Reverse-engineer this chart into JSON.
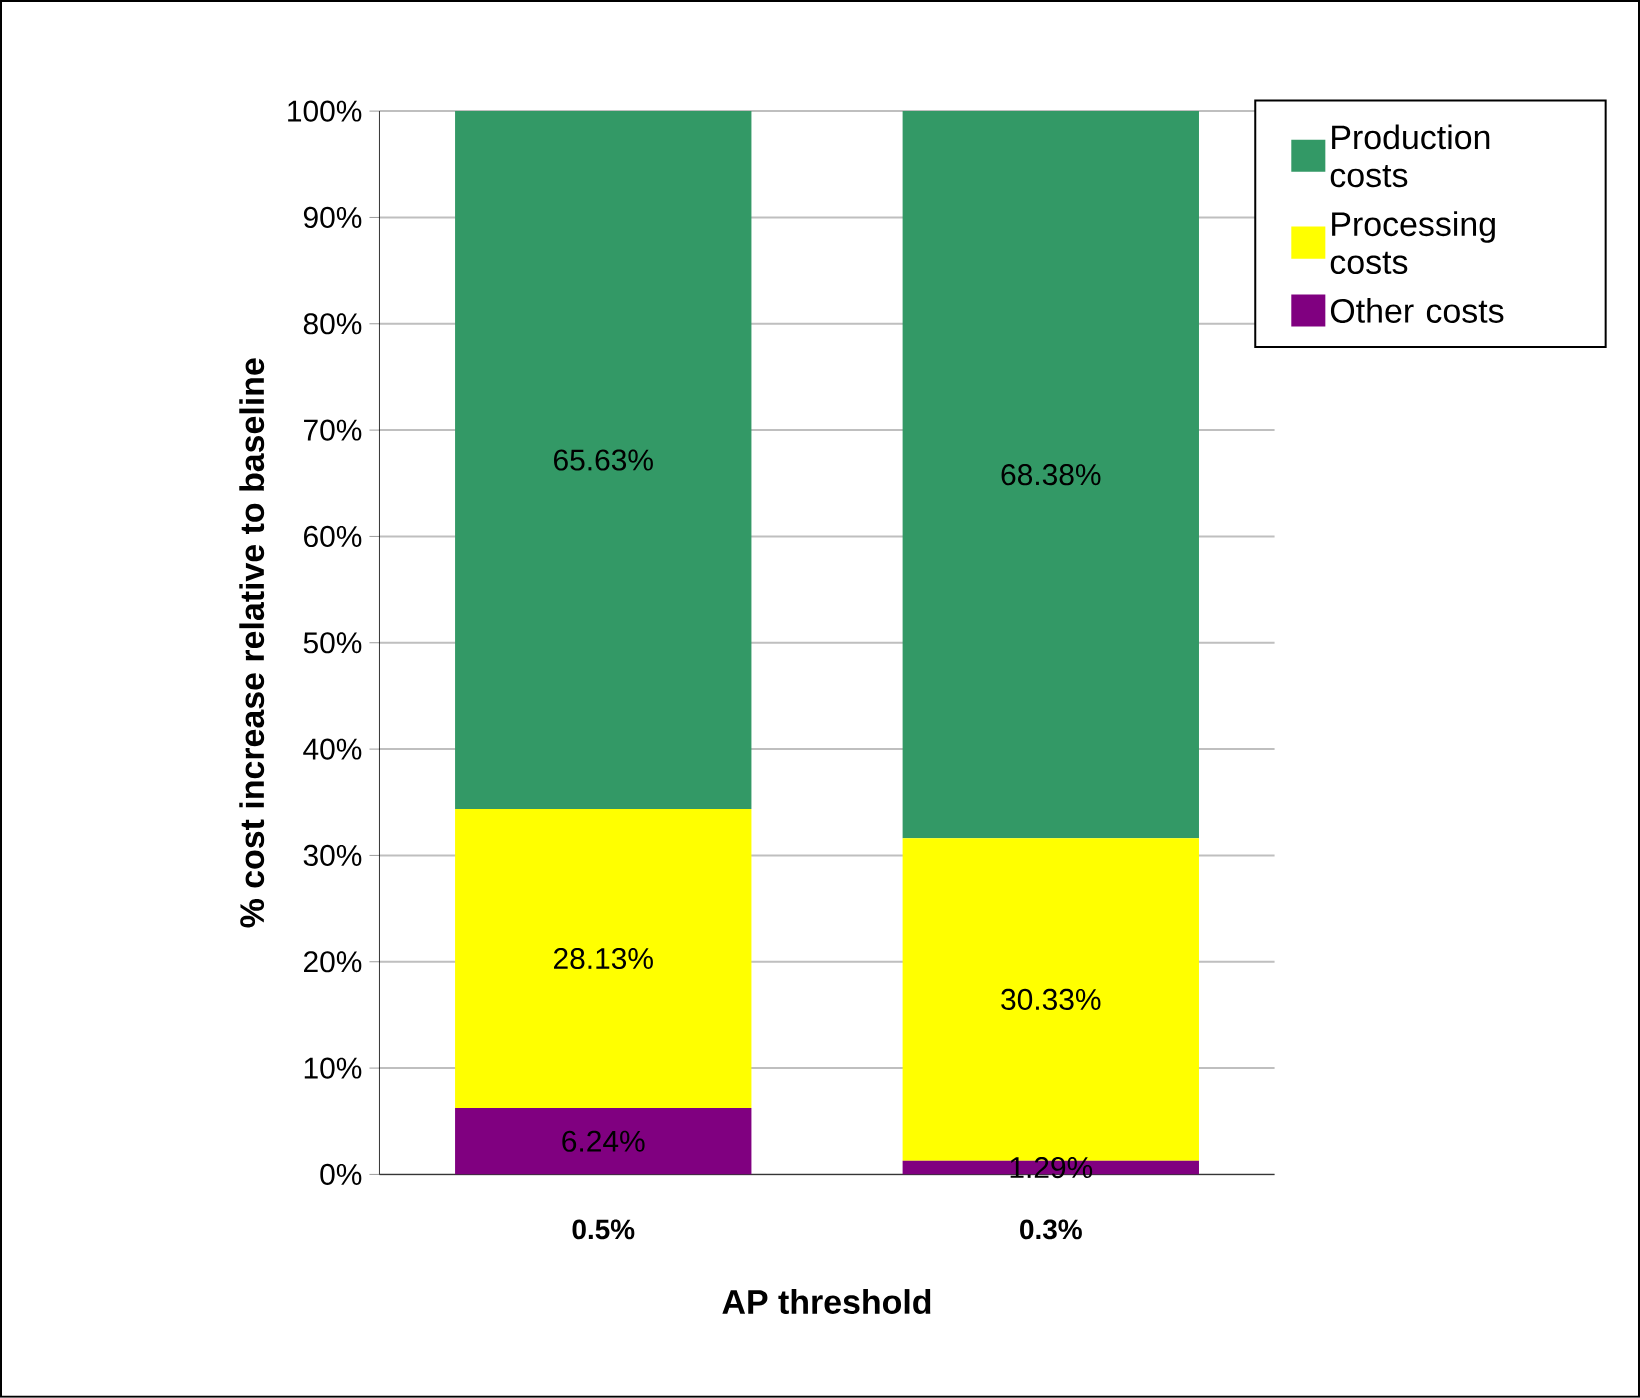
{
  "chart_data": {
    "type": "bar",
    "stacked": true,
    "xlabel": "AP threshold",
    "ylabel": "% cost increase relative to baseline",
    "categories": [
      "0.5%",
      "0.3%"
    ],
    "series": [
      {
        "name": "Other costs",
        "color": "#800080",
        "values": [
          6.24,
          1.29
        ],
        "value_labels": [
          "6.24%",
          "1.29%"
        ]
      },
      {
        "name": "Processing costs",
        "color": "#ffff00",
        "values": [
          28.13,
          30.33
        ],
        "value_labels": [
          "28.13%",
          "30.33%"
        ]
      },
      {
        "name": "Production costs",
        "color": "#339966",
        "values": [
          65.63,
          68.38
        ],
        "value_labels": [
          "65.63%",
          "68.38%"
        ]
      }
    ],
    "ylim": [
      0,
      100
    ],
    "yticks": [
      {
        "value": 0,
        "label": "0%"
      },
      {
        "value": 10,
        "label": "10%"
      },
      {
        "value": 20,
        "label": "20%"
      },
      {
        "value": 30,
        "label": "30%"
      },
      {
        "value": 40,
        "label": "40%"
      },
      {
        "value": 50,
        "label": "50%"
      },
      {
        "value": 60,
        "label": "60%"
      },
      {
        "value": 70,
        "label": "70%"
      },
      {
        "value": 80,
        "label": "80%"
      },
      {
        "value": 90,
        "label": "90%"
      },
      {
        "value": 100,
        "label": "100%"
      }
    ],
    "grid": "y",
    "legend": "top right"
  }
}
